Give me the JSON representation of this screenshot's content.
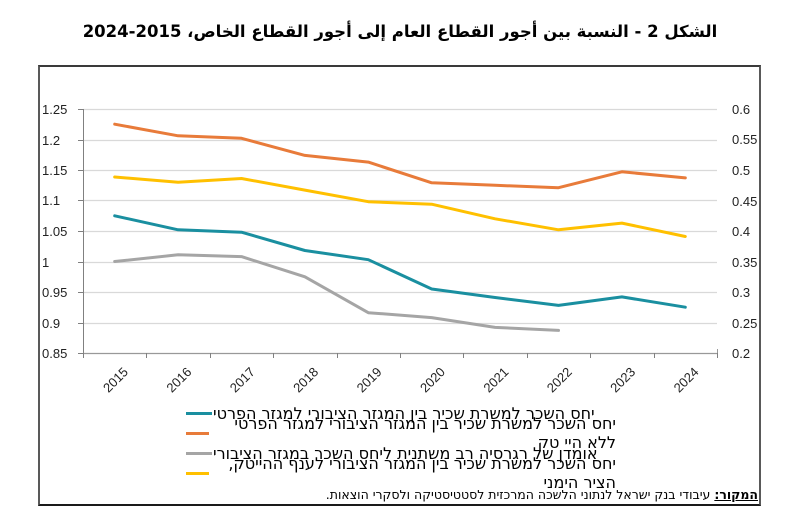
{
  "chart_data": {
    "type": "line",
    "title": "الشكل 2 - النسبة بين أجور القطاع العام إلى أجور القطاع الخاص، 2015-2024",
    "categories": [
      "2015",
      "2016",
      "2017",
      "2018",
      "2019",
      "2020",
      "2021",
      "2022",
      "2023",
      "2024"
    ],
    "left_axis": {
      "ylim": [
        0.85,
        1.25
      ],
      "ticks": [
        "1.25",
        "1.2",
        "1.15",
        "1.1",
        "1.05",
        "1",
        "0.95",
        "0.9",
        "0.85"
      ]
    },
    "right_axis": {
      "ylim": [
        0.2,
        0.6
      ],
      "ticks": [
        "0.6",
        "0.55",
        "0.5",
        "0.45",
        "0.4",
        "0.35",
        "0.3",
        "0.25",
        "0.2"
      ]
    },
    "grid": true,
    "series": [
      {
        "name": "יחס השכר למשרת שכיר בין המגזר הציבורי למגזר הפרטי",
        "color": "#1A8FA0",
        "axis": "left",
        "values": [
          1.075,
          1.052,
          1.048,
          1.018,
          1.003,
          0.955,
          0.941,
          0.928,
          0.942,
          0.925
        ]
      },
      {
        "name": "יחס השכר למשרת שכיר בין המגזר הציבורי למגזר הפרטי ללא היי טק",
        "color": "#E87B3A",
        "axis": "left",
        "values": [
          1.225,
          1.206,
          1.202,
          1.174,
          1.163,
          1.129,
          1.125,
          1.121,
          1.147,
          1.137
        ]
      },
      {
        "name": "אומדן של רגרסיה רב משתנית ליחס השכר במגזר הציבורי",
        "color": "#A5A5A5",
        "axis": "left",
        "values": [
          1.0,
          1.011,
          1.008,
          0.975,
          0.916,
          0.908,
          0.892,
          0.887,
          null,
          null
        ]
      },
      {
        "name": "יחס השכר למשרת שכיר בין המגזר הציבורי לענף ההייטק, הציר הימני",
        "color": "#FFC000",
        "axis": "right",
        "values": [
          0.4885,
          0.48,
          0.486,
          0.467,
          0.448,
          0.444,
          0.42,
          0.402,
          0.413,
          0.391
        ]
      }
    ],
    "legend_placement": "bottom"
  },
  "source": {
    "label": "המקור:",
    "text": " עיבודי בנק ישראל לנתוני הלשכה המרכזית לסטטיסטיקה ולסקרי הוצאות."
  }
}
